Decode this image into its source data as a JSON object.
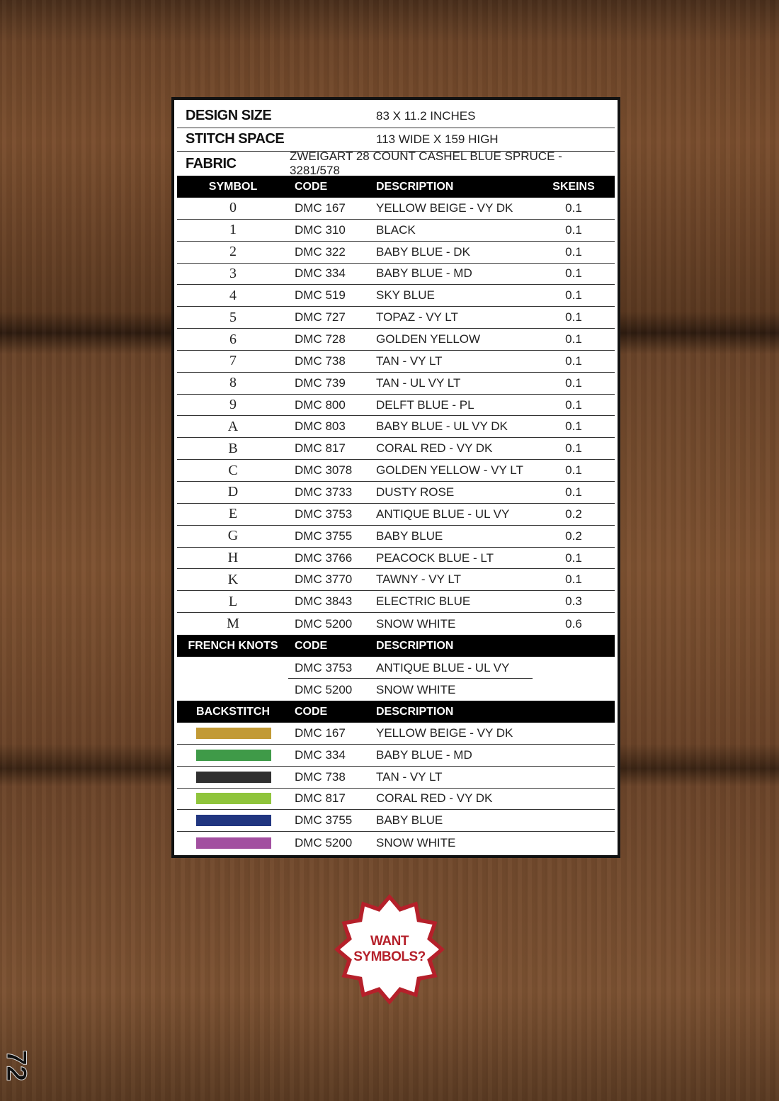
{
  "info": [
    {
      "label": "DESIGN SIZE",
      "value": "83 X 11.2 INCHES"
    },
    {
      "label": "STITCH SPACE",
      "value": "113 WIDE X 159 HIGH"
    },
    {
      "label": "FABRIC",
      "value": "ZWEIGART 28 COUNT CASHEL BLUE SPRUCE - 3281/578"
    }
  ],
  "key_header": {
    "symbol": "SYMBOL",
    "code": "CODE",
    "description": "DESCRIPTION",
    "skeins": "SKEINS"
  },
  "key_rows": [
    {
      "symbol": "0",
      "code": "DMC 167",
      "description": "YELLOW BEIGE - VY DK",
      "skeins": "0.1"
    },
    {
      "symbol": "1",
      "code": "DMC 310",
      "description": "BLACK",
      "skeins": "0.1"
    },
    {
      "symbol": "2",
      "code": "DMC 322",
      "description": "BABY BLUE - DK",
      "skeins": "0.1"
    },
    {
      "symbol": "3",
      "code": "DMC 334",
      "description": "BABY BLUE - MD",
      "skeins": "0.1"
    },
    {
      "symbol": "4",
      "code": "DMC 519",
      "description": "SKY BLUE",
      "skeins": "0.1"
    },
    {
      "symbol": "5",
      "code": "DMC 727",
      "description": "TOPAZ - VY LT",
      "skeins": "0.1"
    },
    {
      "symbol": "6",
      "code": "DMC 728",
      "description": "GOLDEN YELLOW",
      "skeins": "0.1"
    },
    {
      "symbol": "7",
      "code": "DMC 738",
      "description": "TAN - VY LT",
      "skeins": "0.1"
    },
    {
      "symbol": "8",
      "code": "DMC 739",
      "description": "TAN - UL VY LT",
      "skeins": "0.1"
    },
    {
      "symbol": "9",
      "code": "DMC 800",
      "description": "DELFT BLUE - PL",
      "skeins": "0.1"
    },
    {
      "symbol": "A",
      "code": "DMC 803",
      "description": "BABY BLUE - UL VY DK",
      "skeins": "0.1"
    },
    {
      "symbol": "B",
      "code": "DMC 817",
      "description": "CORAL RED - VY DK",
      "skeins": "0.1"
    },
    {
      "symbol": "C",
      "code": "DMC 3078",
      "description": "GOLDEN YELLOW - VY LT",
      "skeins": "0.1"
    },
    {
      "symbol": "D",
      "code": "DMC 3733",
      "description": "DUSTY ROSE",
      "skeins": "0.1"
    },
    {
      "symbol": "E",
      "code": "DMC 3753",
      "description": "ANTIQUE BLUE - UL VY",
      "skeins": "0.2"
    },
    {
      "symbol": "G",
      "code": "DMC 3755",
      "description": "BABY BLUE",
      "skeins": "0.2"
    },
    {
      "symbol": "H",
      "code": "DMC 3766",
      "description": "PEACOCK BLUE - LT",
      "skeins": "0.1"
    },
    {
      "symbol": "K",
      "code": "DMC 3770",
      "description": "TAWNY - VY LT",
      "skeins": "0.1"
    },
    {
      "symbol": "L",
      "code": "DMC 3843",
      "description": "ELECTRIC BLUE",
      "skeins": "0.3"
    },
    {
      "symbol": "M",
      "code": "DMC 5200",
      "description": "SNOW WHITE",
      "skeins": "0.6"
    }
  ],
  "french_header": {
    "label": "FRENCH KNOTS",
    "code": "CODE",
    "description": "DESCRIPTION"
  },
  "french_rows": [
    {
      "code": "DMC 3753",
      "description": "ANTIQUE BLUE - UL VY"
    },
    {
      "code": "DMC 5200",
      "description": "SNOW WHITE"
    }
  ],
  "back_header": {
    "label": "BACKSTITCH",
    "code": "CODE",
    "description": "DESCRIPTION"
  },
  "back_rows": [
    {
      "color": "#c29a35",
      "code": "DMC 167",
      "description": "YELLOW BEIGE - VY DK"
    },
    {
      "color": "#3f9a48",
      "code": "DMC 334",
      "description": "BABY BLUE - MD"
    },
    {
      "color": "#303030",
      "code": "DMC 738",
      "description": "TAN - VY LT"
    },
    {
      "color": "#8fc43c",
      "code": "DMC 817",
      "description": "CORAL RED - VY DK"
    },
    {
      "color": "#213680",
      "code": "DMC 3755",
      "description": "BABY BLUE"
    },
    {
      "color": "#a24fa0",
      "code": "DMC 5200",
      "description": "SNOW WHITE"
    }
  ],
  "badge": {
    "line1": "WANT",
    "line2": "SYMBOLS?",
    "color": "#b5202a"
  },
  "page_number": "72"
}
